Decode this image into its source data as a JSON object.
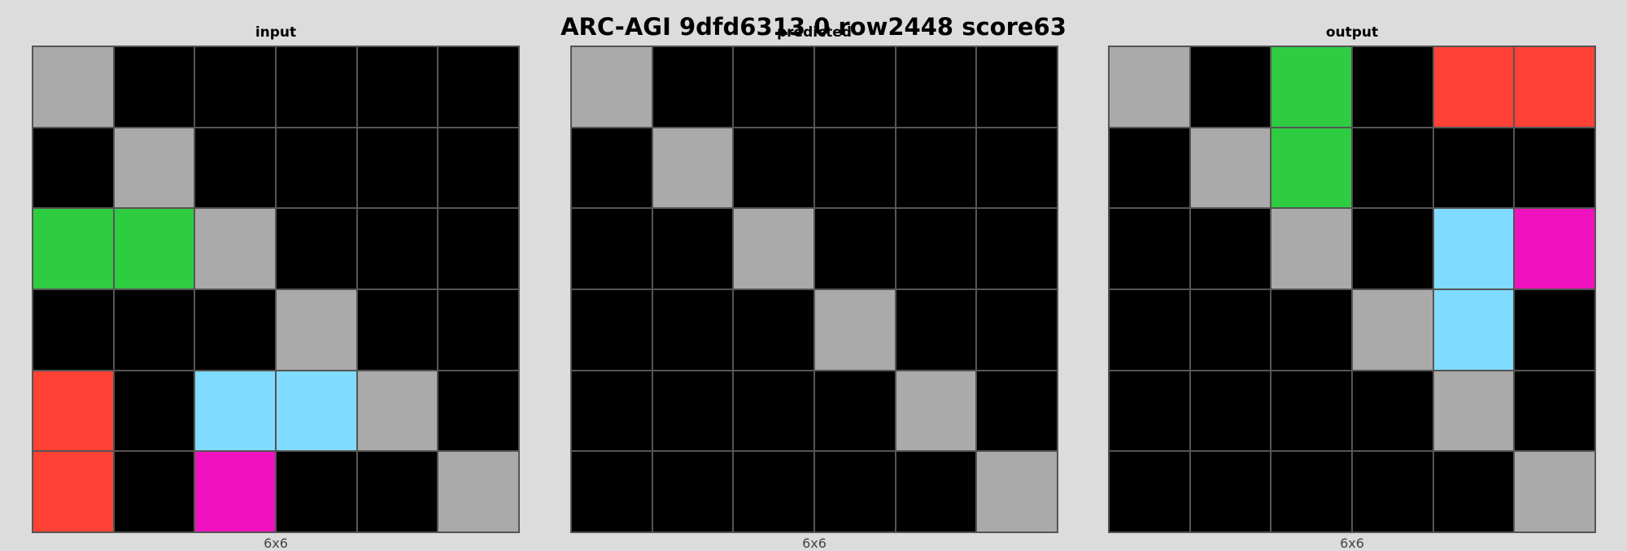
{
  "title": "ARC-AGI 9dfd6313 0 row2448 score63",
  "palette": {
    "0": "#000000",
    "2": "#ff4136",
    "3": "#2ecc40",
    "5": "#aaaaaa",
    "6": "#f012be",
    "8": "#7fdbff"
  },
  "panels": [
    {
      "label": "input",
      "size": "6x6",
      "grid": [
        [
          5,
          0,
          0,
          0,
          0,
          0
        ],
        [
          0,
          5,
          0,
          0,
          0,
          0
        ],
        [
          3,
          3,
          5,
          0,
          0,
          0
        ],
        [
          0,
          0,
          0,
          5,
          0,
          0
        ],
        [
          2,
          0,
          8,
          8,
          5,
          0
        ],
        [
          2,
          0,
          6,
          0,
          0,
          5
        ]
      ]
    },
    {
      "label": "predicted",
      "size": "6x6",
      "grid": [
        [
          5,
          0,
          0,
          0,
          0,
          0
        ],
        [
          0,
          5,
          0,
          0,
          0,
          0
        ],
        [
          0,
          0,
          5,
          0,
          0,
          0
        ],
        [
          0,
          0,
          0,
          5,
          0,
          0
        ],
        [
          0,
          0,
          0,
          0,
          5,
          0
        ],
        [
          0,
          0,
          0,
          0,
          0,
          5
        ]
      ]
    },
    {
      "label": "output",
      "size": "6x6",
      "grid": [
        [
          5,
          0,
          3,
          0,
          2,
          2
        ],
        [
          0,
          5,
          3,
          0,
          0,
          0
        ],
        [
          0,
          0,
          5,
          0,
          8,
          6
        ],
        [
          0,
          0,
          0,
          5,
          8,
          0
        ],
        [
          0,
          0,
          0,
          0,
          5,
          0
        ],
        [
          0,
          0,
          0,
          0,
          0,
          5
        ]
      ]
    }
  ]
}
